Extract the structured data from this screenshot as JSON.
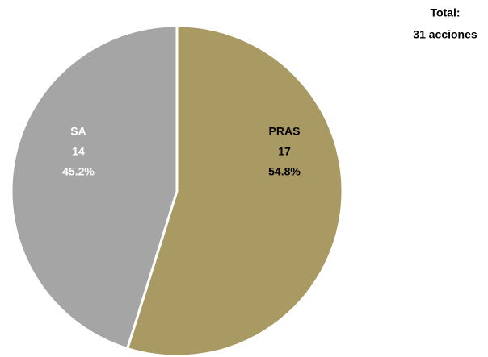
{
  "chart_data": {
    "type": "pie",
    "categories": [
      "PRAS",
      "SA"
    ],
    "values": [
      17,
      14
    ],
    "value_labels": [
      "54.8%",
      "45.2%"
    ],
    "colors": [
      "#a99a63",
      "#a5a5a5"
    ],
    "label_colors": [
      "#000000",
      "#ffffff"
    ],
    "annotations": [
      "Total:",
      "31 acciones"
    ]
  }
}
